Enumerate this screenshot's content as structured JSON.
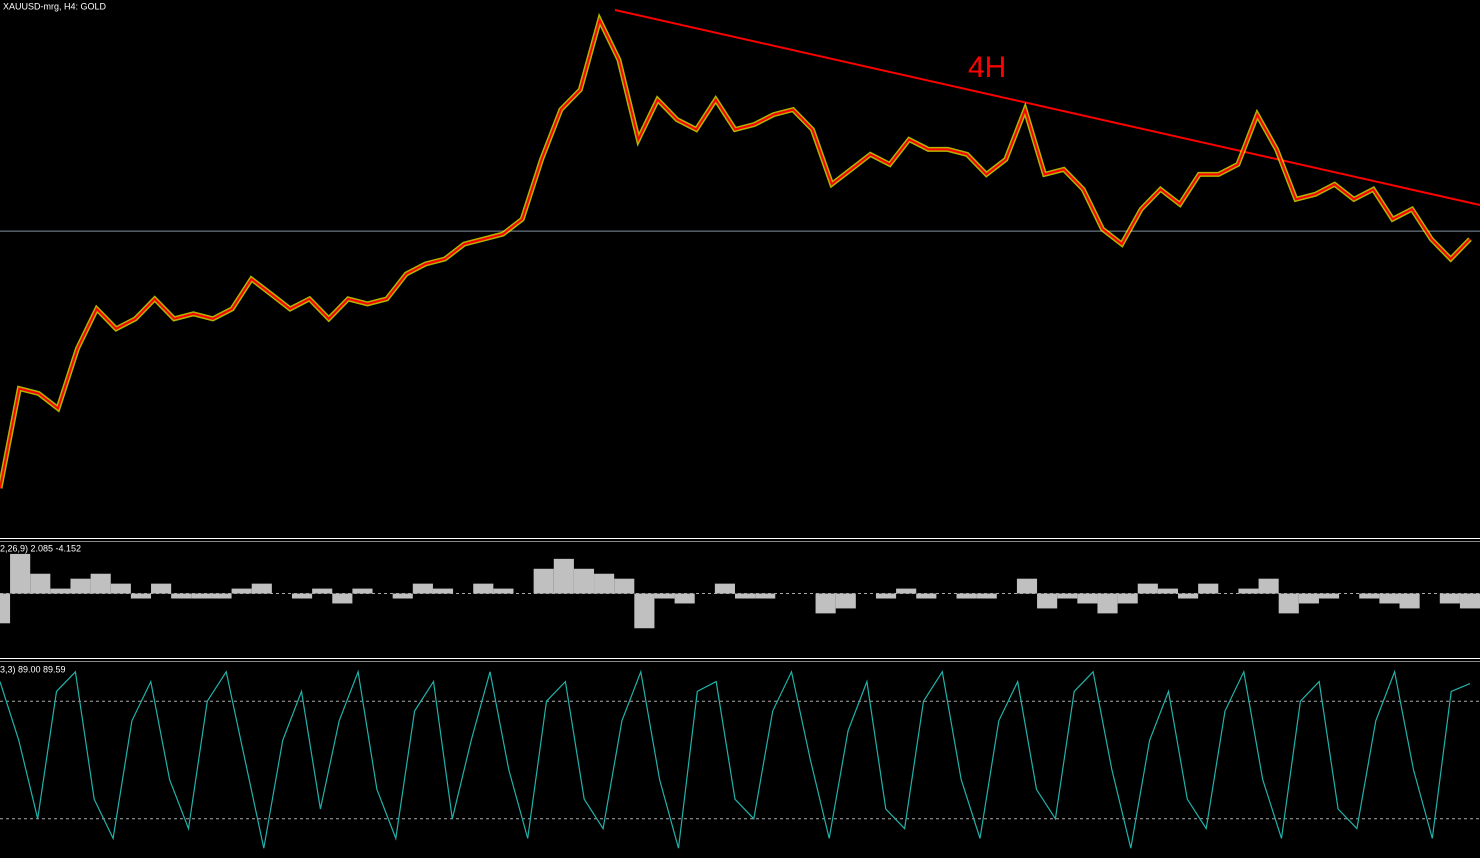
{
  "chart_data": [
    {
      "type": "line",
      "title": "XAUUSD-mrg, H4:  GOLD",
      "annotation": "4H",
      "color": "#ff0000",
      "envelope_color": "#ffff00",
      "values": [
        50,
        150,
        145,
        130,
        190,
        230,
        210,
        220,
        240,
        220,
        225,
        220,
        230,
        260,
        245,
        230,
        240,
        220,
        240,
        235,
        240,
        265,
        275,
        280,
        295,
        300,
        305,
        320,
        380,
        430,
        450,
        520,
        480,
        400,
        440,
        420,
        410,
        440,
        410,
        415,
        425,
        430,
        410,
        355,
        370,
        385,
        375,
        400,
        390,
        390,
        385,
        365,
        380,
        430,
        365,
        370,
        350,
        310,
        295,
        330,
        350,
        335,
        365,
        365,
        375,
        425,
        390,
        340,
        345,
        355,
        340,
        350,
        320,
        330,
        300,
        280,
        300
      ],
      "ylim": [
        0,
        540
      ],
      "horizontal_line": 308
    },
    {
      "type": "bar",
      "title": "2,26,9) 2.085 -4.152",
      "color": "#c0c0c0",
      "values": [
        -30,
        40,
        20,
        5,
        15,
        20,
        10,
        -5,
        10,
        -5,
        -5,
        -5,
        5,
        10,
        0,
        -5,
        5,
        -10,
        5,
        0,
        -5,
        10,
        5,
        0,
        10,
        5,
        0,
        25,
        35,
        25,
        20,
        15,
        -35,
        -5,
        -10,
        0,
        10,
        -5,
        -5,
        0,
        0,
        -20,
        -15,
        0,
        -5,
        5,
        -5,
        0,
        -5,
        -5,
        0,
        15,
        -15,
        -5,
        -10,
        -20,
        -10,
        10,
        5,
        -5,
        10,
        0,
        5,
        15,
        -20,
        -10,
        -5,
        0,
        -5,
        -10,
        -15,
        0,
        -10,
        -15
      ],
      "ylim": [
        -65,
        52
      ]
    },
    {
      "type": "line",
      "title": "3,3) 89.00 89.59",
      "color": "#20b2aa",
      "values": [
        90,
        60,
        20,
        85,
        95,
        30,
        10,
        70,
        90,
        40,
        15,
        80,
        95,
        50,
        5,
        60,
        85,
        25,
        70,
        95,
        35,
        10,
        75,
        90,
        20,
        60,
        95,
        45,
        10,
        80,
        90,
        30,
        15,
        70,
        95,
        40,
        5,
        85,
        90,
        30,
        20,
        75,
        95,
        50,
        10,
        65,
        90,
        25,
        15,
        80,
        95,
        40,
        10,
        70,
        90,
        35,
        20,
        85,
        95,
        45,
        5,
        60,
        85,
        30,
        15,
        75,
        95,
        40,
        10,
        80,
        90,
        25,
        15,
        70,
        95,
        45,
        10,
        85,
        89
      ],
      "ylim": [
        0,
        100
      ],
      "levels": [
        20,
        80
      ]
    }
  ]
}
